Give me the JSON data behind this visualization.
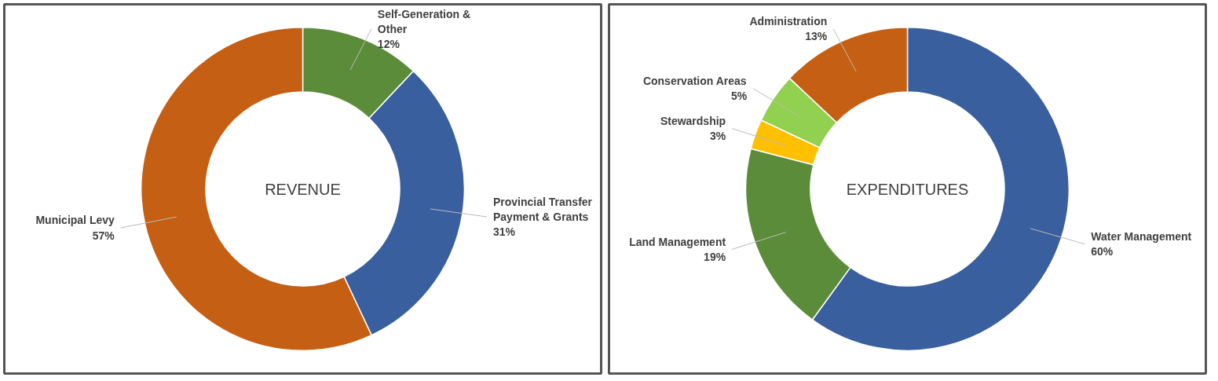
{
  "chart_data": [
    {
      "type": "donut",
      "title": "REVENUE",
      "categories": [
        "Self-Generation & Other",
        "Provincial Transfer Payment & Grants",
        "Municipal Levy"
      ],
      "values": [
        12,
        31,
        57
      ],
      "colors": [
        "#5b8c3a",
        "#3a5f9e",
        "#c55f14"
      ],
      "value_labels": [
        "12%",
        "31%",
        "57%"
      ]
    },
    {
      "type": "donut",
      "title": "EXPENDITURES",
      "categories": [
        "Water Management",
        "Land Management",
        "Stewardship",
        "Conservation Areas",
        "Administration"
      ],
      "values": [
        60,
        19,
        3,
        5,
        13
      ],
      "colors": [
        "#3a5f9e",
        "#5b8c3a",
        "#ffc000",
        "#92d050",
        "#c55f14"
      ],
      "value_labels": [
        "60%",
        "19%",
        "3%",
        "5%",
        "13%"
      ]
    }
  ]
}
